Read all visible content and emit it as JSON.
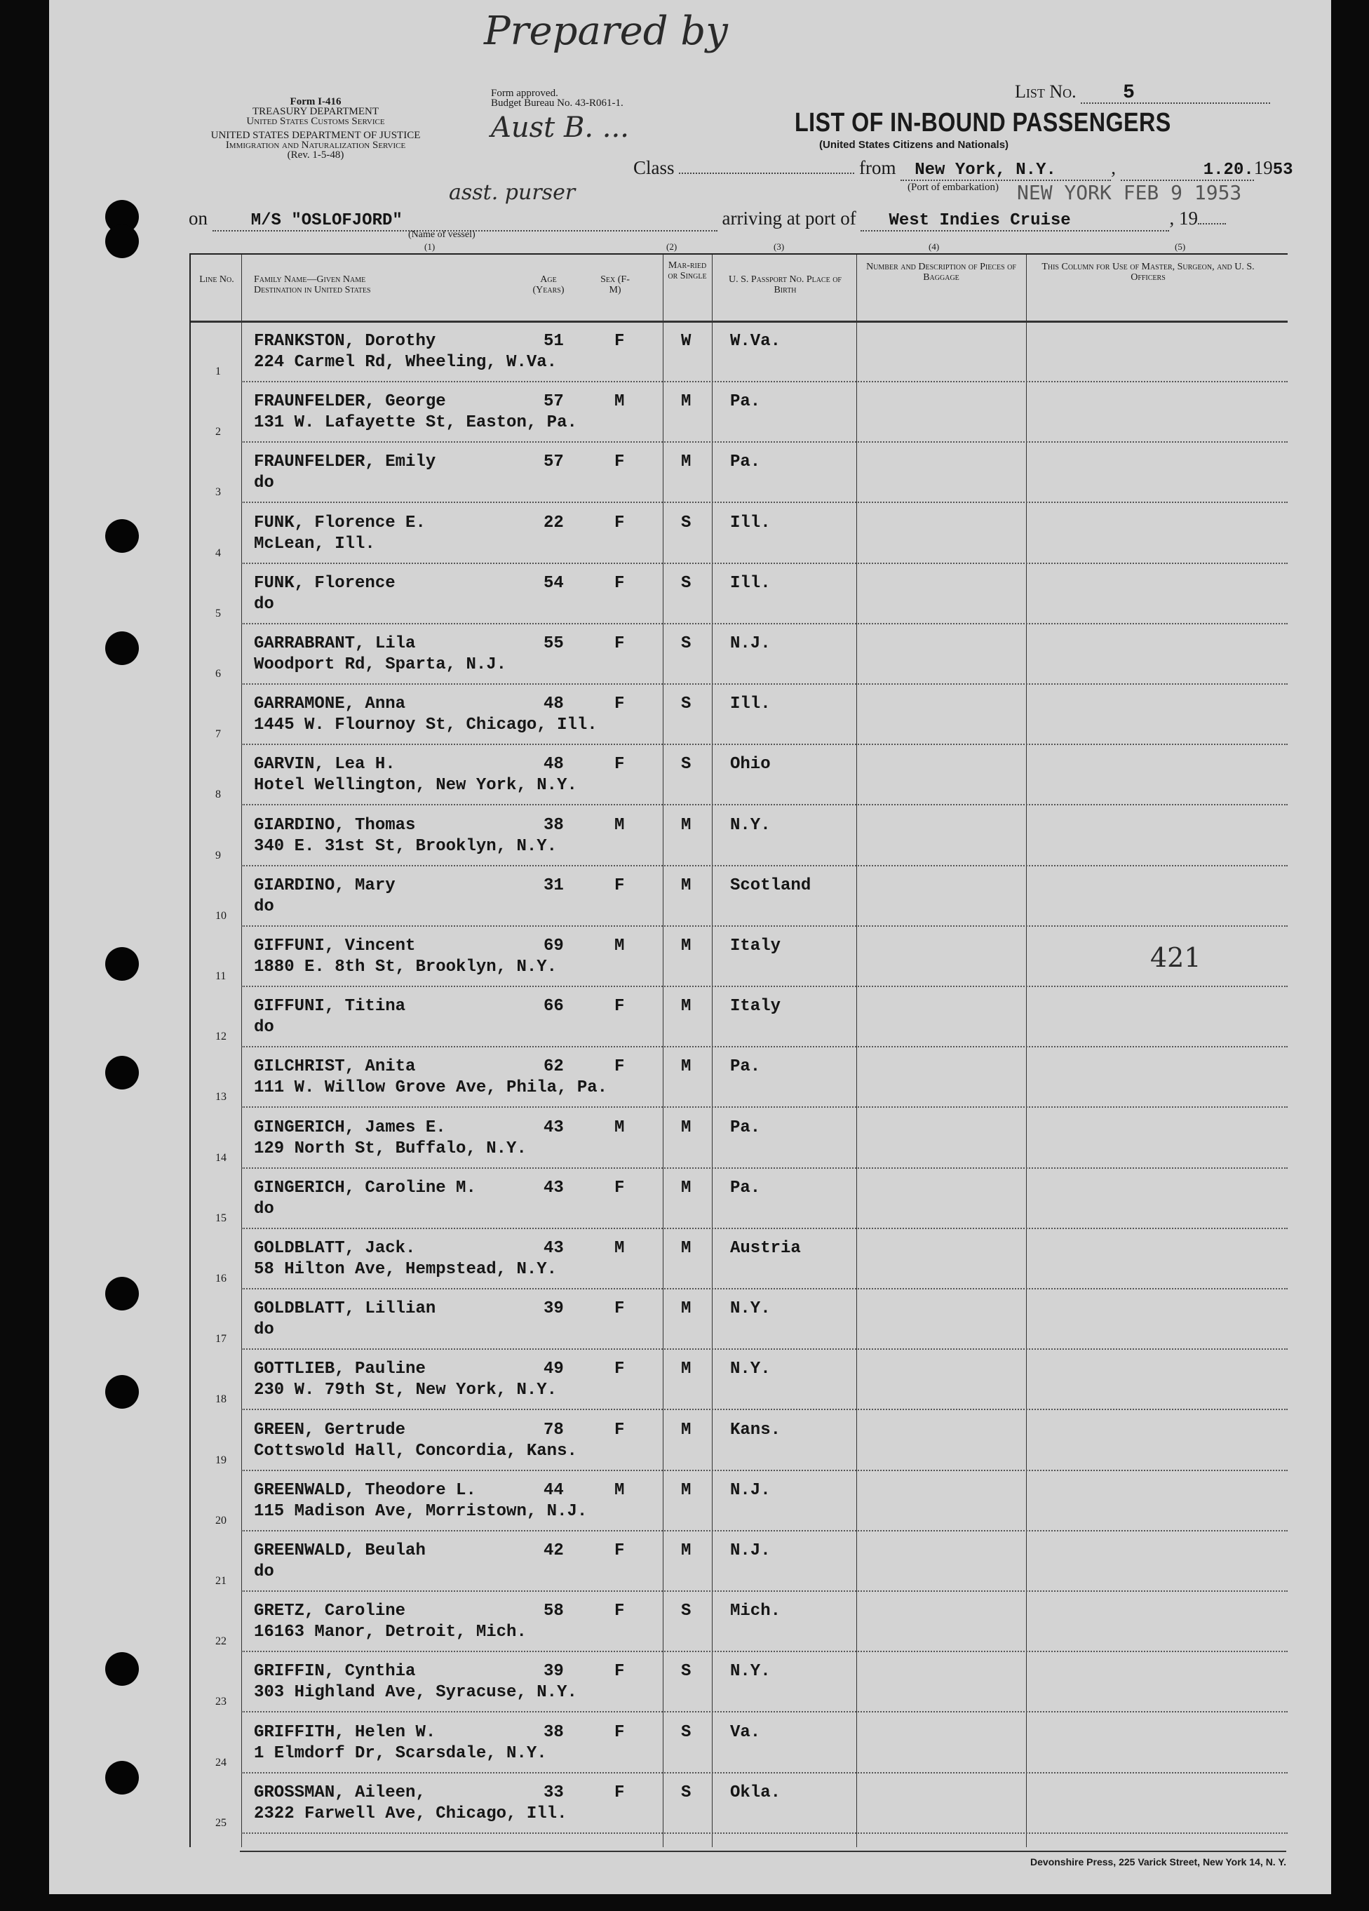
{
  "form": {
    "form_no": "Form I-416",
    "dept1": "TREASURY DEPARTMENT",
    "dept1_sub": "United States Customs Service",
    "dept2": "UNITED STATES DEPARTMENT OF JUSTICE",
    "dept2_sub": "Immigration and Naturalization Service",
    "revision": "(Rev. 1-5-48)",
    "approved": "Form approved.",
    "budget": "Budget Bureau No. 43-R061-1."
  },
  "header": {
    "list_no_label": "List No.",
    "list_no": "5",
    "title": "LIST OF IN-BOUND PASSENGERS",
    "subtitle": "(United States Citizens and Nationals)",
    "class_label": "Class",
    "from_label": "from",
    "port_embarkation": "New York, N.Y.",
    "port_embarkation_caption": "(Port of embarkation)",
    "date": "1.20.",
    "year_prefix": "19",
    "year_suffix": "53",
    "on_label": "on",
    "vessel": "M/S \"OSLOFJORD\"",
    "vessel_caption": "(Name of vessel)",
    "arriving_label": "arriving at port of",
    "arrival_port": "West Indies Cruise",
    "arrival_year": ", 19",
    "col_numbers": [
      "(1)",
      "(2)",
      "(3)",
      "(4)",
      "(5)"
    ]
  },
  "stamp": "NEW YORK   FEB  9 1953",
  "handwriting": {
    "line1": "Prepared by",
    "line2": "Aust B. ...",
    "line3": "asst. purser",
    "officer_note": "421"
  },
  "columns": {
    "line": "Line No.",
    "name": "Family Name—Given Name\nDestination in United States",
    "age": "Age (Years)",
    "sex": "Sex (F-M)",
    "married": "Mar-ried or Single",
    "passport": "U. S. Passport No. Place of Birth",
    "baggage": "Number and Description of Pieces of Baggage",
    "officers": "This Column for Use of Master, Surgeon, and U. S. Officers"
  },
  "rows": [
    {
      "line": "1",
      "name": "FRANKSTON, Dorothy",
      "dest": "224 Carmel Rd, Wheeling, W.Va.",
      "age": "51",
      "sex": "F",
      "married": "W",
      "birth": "W.Va."
    },
    {
      "line": "2",
      "name": "FRAUNFELDER, George",
      "dest": "131 W. Lafayette St, Easton, Pa.",
      "age": "57",
      "sex": "M",
      "married": "M",
      "birth": "Pa."
    },
    {
      "line": "3",
      "name": "FRAUNFELDER, Emily",
      "dest": "do",
      "age": "57",
      "sex": "F",
      "married": "M",
      "birth": "Pa."
    },
    {
      "line": "4",
      "name": "FUNK, Florence E.",
      "dest": "McLean, Ill.",
      "age": "22",
      "sex": "F",
      "married": "S",
      "birth": "Ill."
    },
    {
      "line": "5",
      "name": "FUNK, Florence",
      "dest": "do",
      "age": "54",
      "sex": "F",
      "married": "S",
      "birth": "Ill."
    },
    {
      "line": "6",
      "name": "GARRABRANT, Lila",
      "dest": "Woodport Rd, Sparta, N.J.",
      "age": "55",
      "sex": "F",
      "married": "S",
      "birth": "N.J."
    },
    {
      "line": "7",
      "name": "GARRAMONE, Anna",
      "dest": "1445 W. Flournoy St, Chicago, Ill.",
      "age": "48",
      "sex": "F",
      "married": "S",
      "birth": "Ill."
    },
    {
      "line": "8",
      "name": "GARVIN, Lea H.",
      "dest": "Hotel Wellington, New York, N.Y.",
      "age": "48",
      "sex": "F",
      "married": "S",
      "birth": "Ohio"
    },
    {
      "line": "9",
      "name": "GIARDINO, Thomas",
      "dest": "340 E. 31st St, Brooklyn, N.Y.",
      "age": "38",
      "sex": "M",
      "married": "M",
      "birth": "N.Y."
    },
    {
      "line": "10",
      "name": "GIARDINO, Mary",
      "dest": "do",
      "age": "31",
      "sex": "F",
      "married": "M",
      "birth": "Scotland"
    },
    {
      "line": "11",
      "name": "GIFFUNI, Vincent",
      "dest": "1880 E. 8th St, Brooklyn, N.Y.",
      "age": "69",
      "sex": "M",
      "married": "M",
      "birth": "Italy"
    },
    {
      "line": "12",
      "name": "GIFFUNI, Titina",
      "dest": "do",
      "age": "66",
      "sex": "F",
      "married": "M",
      "birth": "Italy"
    },
    {
      "line": "13",
      "name": "GILCHRIST, Anita",
      "dest": "111 W. Willow Grove Ave, Phila, Pa.",
      "age": "62",
      "sex": "F",
      "married": "M",
      "birth": "Pa."
    },
    {
      "line": "14",
      "name": "GINGERICH, James E.",
      "dest": "129 North St, Buffalo, N.Y.",
      "age": "43",
      "sex": "M",
      "married": "M",
      "birth": "Pa."
    },
    {
      "line": "15",
      "name": "GINGERICH, Caroline M.",
      "dest": "do",
      "age": "43",
      "sex": "F",
      "married": "M",
      "birth": "Pa."
    },
    {
      "line": "16",
      "name": "GOLDBLATT, Jack.",
      "dest": "58 Hilton Ave, Hempstead, N.Y.",
      "age": "43",
      "sex": "M",
      "married": "M",
      "birth": "Austria"
    },
    {
      "line": "17",
      "name": "GOLDBLATT, Lillian",
      "dest": "do",
      "age": "39",
      "sex": "F",
      "married": "M",
      "birth": "N.Y."
    },
    {
      "line": "18",
      "name": "GOTTLIEB, Pauline",
      "dest": "230 W. 79th St, New York, N.Y.",
      "age": "49",
      "sex": "F",
      "married": "M",
      "birth": "N.Y."
    },
    {
      "line": "19",
      "name": "GREEN, Gertrude",
      "dest": "Cottswold Hall, Concordia, Kans.",
      "age": "78",
      "sex": "F",
      "married": "M",
      "birth": "Kans."
    },
    {
      "line": "20",
      "name": "GREENWALD, Theodore L.",
      "dest": "115 Madison Ave, Morristown, N.J.",
      "age": "44",
      "sex": "M",
      "married": "M",
      "birth": "N.J."
    },
    {
      "line": "21",
      "name": "GREENWALD, Beulah",
      "dest": "do",
      "age": "42",
      "sex": "F",
      "married": "M",
      "birth": "N.J."
    },
    {
      "line": "22",
      "name": "GRETZ, Caroline",
      "dest": "16163 Manor, Detroit, Mich.",
      "age": "58",
      "sex": "F",
      "married": "S",
      "birth": "Mich."
    },
    {
      "line": "23",
      "name": "GRIFFIN, Cynthia",
      "dest": "303 Highland Ave, Syracuse, N.Y.",
      "age": "39",
      "sex": "F",
      "married": "S",
      "birth": "N.Y."
    },
    {
      "line": "24",
      "name": "GRIFFITH, Helen W.",
      "dest": "1 Elmdorf Dr, Scarsdale, N.Y.",
      "age": "38",
      "sex": "F",
      "married": "S",
      "birth": "Va."
    },
    {
      "line": "25",
      "name": "GROSSMAN, Aileen,",
      "dest": "2322 Farwell Ave, Chicago, Ill.",
      "age": "33",
      "sex": "F",
      "married": "S",
      "birth": "Okla."
    }
  ],
  "footer": "Devonshire Press, 225 Varick Street, New York 14, N. Y."
}
